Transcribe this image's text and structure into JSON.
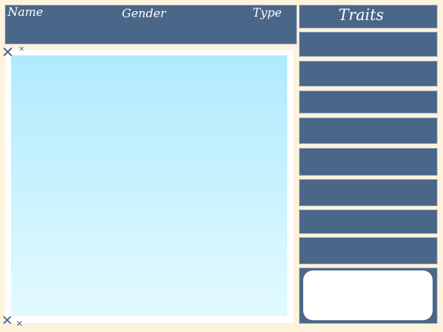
{
  "header": {
    "name_label": "Name",
    "gender_label": "Gender",
    "type_label": "Type"
  },
  "traits": {
    "title": "Traits",
    "slots": 8
  },
  "decor": {
    "sparkle_icon": "x-sparkle",
    "accent": "#4a6688",
    "background": "#fdf2dc"
  }
}
